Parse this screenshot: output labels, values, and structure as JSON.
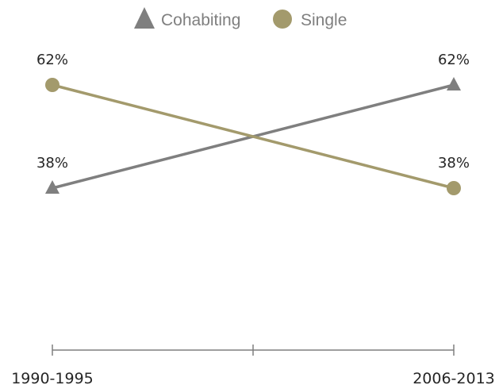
{
  "chart_data": {
    "type": "line",
    "title": "",
    "xlabel": "",
    "ylabel": "",
    "categories": [
      "1990-1995",
      "2006-2013"
    ],
    "ylim": [
      0,
      100
    ],
    "grid": false,
    "legend_position": "top-center",
    "series": [
      {
        "name": "Cohabiting",
        "values": [
          38,
          62
        ],
        "labels": [
          "38%",
          "62%"
        ],
        "color": "#7f7f7f",
        "marker": "triangle"
      },
      {
        "name": "Single",
        "values": [
          62,
          38
        ],
        "labels": [
          "62%",
          "38%"
        ],
        "color": "#a39a6c",
        "marker": "circle"
      }
    ],
    "axis_color": "#7f7f7f"
  }
}
